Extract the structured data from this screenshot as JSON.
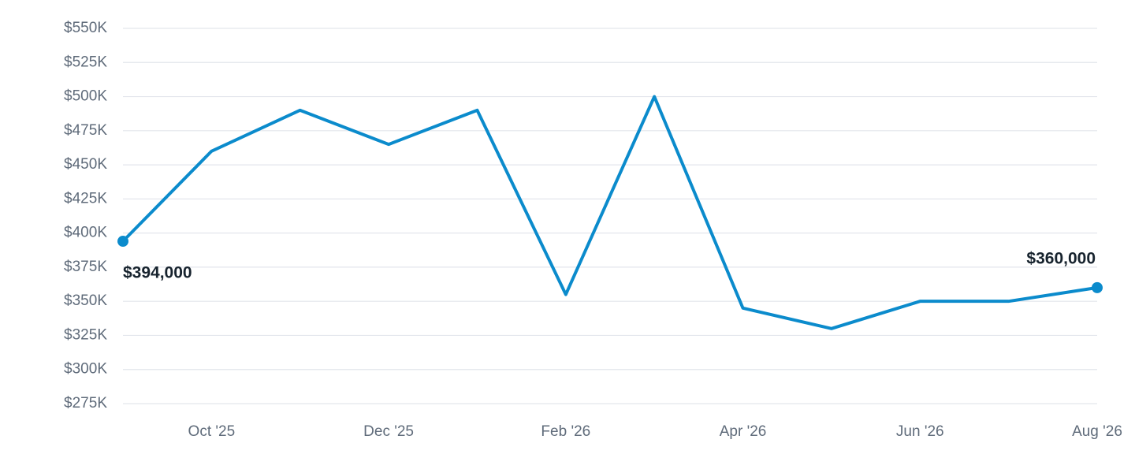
{
  "chart_data": {
    "type": "line",
    "categories": [
      null,
      "Oct '25",
      null,
      "Dec '25",
      null,
      "Feb '26",
      null,
      "Apr '26",
      null,
      "Jun '26",
      null,
      "Aug '26"
    ],
    "values": [
      394000,
      460000,
      490000,
      465000,
      490000,
      355000,
      500000,
      345000,
      330000,
      350000,
      350000,
      360000
    ],
    "value_labels": [
      "$394,000",
      null,
      null,
      null,
      null,
      null,
      null,
      null,
      null,
      null,
      null,
      "$360,000"
    ],
    "color": "#0b8bcc",
    "ylim": [
      275000,
      550000
    ],
    "yticks": [
      {
        "value": 275000,
        "label": "$275K"
      },
      {
        "value": 300000,
        "label": "$300K"
      },
      {
        "value": 325000,
        "label": "$325K"
      },
      {
        "value": 350000,
        "label": "$350K"
      },
      {
        "value": 375000,
        "label": "$375K"
      },
      {
        "value": 400000,
        "label": "$400K"
      },
      {
        "value": 425000,
        "label": "$425K"
      },
      {
        "value": 450000,
        "label": "$450K"
      },
      {
        "value": 475000,
        "label": "$475K"
      },
      {
        "value": 500000,
        "label": "$500K"
      },
      {
        "value": 525000,
        "label": "$525K"
      },
      {
        "value": 550000,
        "label": "$550K"
      }
    ],
    "grid": true
  }
}
